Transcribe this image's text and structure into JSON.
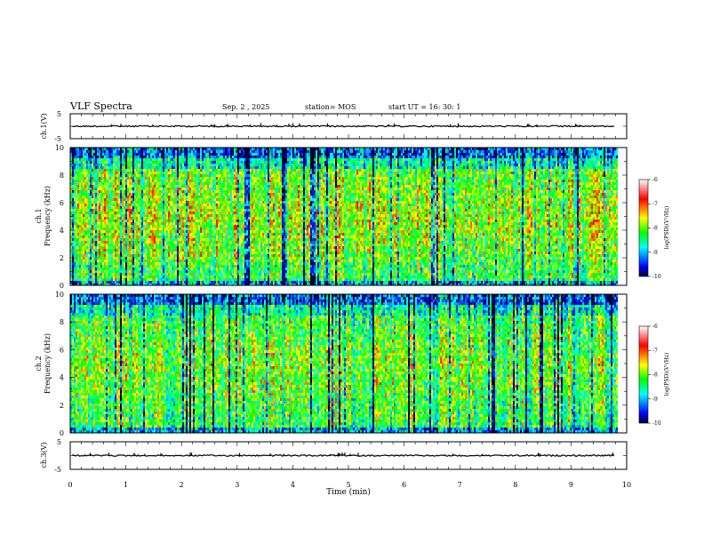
{
  "header": {
    "title": "VLF Spectra",
    "date": "Sep. 2 , 2025",
    "station": "station= MOS",
    "start_ut": "start UT =   16: 30: 1"
  },
  "chart_data": [
    {
      "type": "line",
      "name": "ch1-waveform",
      "ylabel": "ch.1(V)",
      "ylim": [
        -5,
        5
      ],
      "yticks": [
        5,
        -5
      ],
      "x_range_min": [
        0,
        10
      ],
      "series": [
        {
          "name": "ch.1",
          "baseline": 0
        }
      ]
    },
    {
      "type": "heatmap",
      "name": "ch1-spectrogram",
      "ylabel": "ch.1\nFrequency (kHz)",
      "ylabel_lines": [
        "ch.1",
        "Frequency (kHz)"
      ],
      "ylim": [
        0,
        10
      ],
      "yticks": [
        0,
        2,
        4,
        6,
        8,
        10
      ],
      "data_end_min": 9.83,
      "colorbar": {
        "label": "log(PSD)(V²/Hz)",
        "range": [
          -10,
          -6
        ],
        "ticks": [
          -6,
          -7,
          -8,
          -9,
          -10
        ]
      }
    },
    {
      "type": "heatmap",
      "name": "ch2-spectrogram",
      "ylabel": "ch.2\nFrequency (kHz)",
      "ylabel_lines": [
        "ch.2",
        "Frequency (kHz)"
      ],
      "ylim": [
        0,
        10
      ],
      "yticks": [
        0,
        2,
        4,
        6,
        8,
        10
      ],
      "data_end_min": 9.83,
      "colorbar": {
        "label": "log(PSD)(V²/Hz)",
        "range": [
          -10,
          -6
        ],
        "ticks": [
          -6,
          -7,
          -8,
          -9,
          -10
        ]
      }
    },
    {
      "type": "line",
      "name": "ch3-waveform",
      "ylabel": "ch.3(V)",
      "ylim": [
        -5,
        5
      ],
      "yticks": [
        5,
        -5
      ],
      "series": [
        {
          "name": "ch.3",
          "baseline": 0
        }
      ]
    }
  ],
  "xaxis": {
    "label": "Time (min)",
    "range": [
      0,
      10
    ],
    "ticks": [
      0,
      1,
      2,
      3,
      4,
      5,
      6,
      7,
      8,
      9,
      10
    ]
  },
  "colors": {
    "axis": "#000000",
    "colormap": [
      "#000033",
      "#0000ff",
      "#00ffff",
      "#00ff00",
      "#ffff00",
      "#ff0000",
      "#ffffff"
    ]
  }
}
